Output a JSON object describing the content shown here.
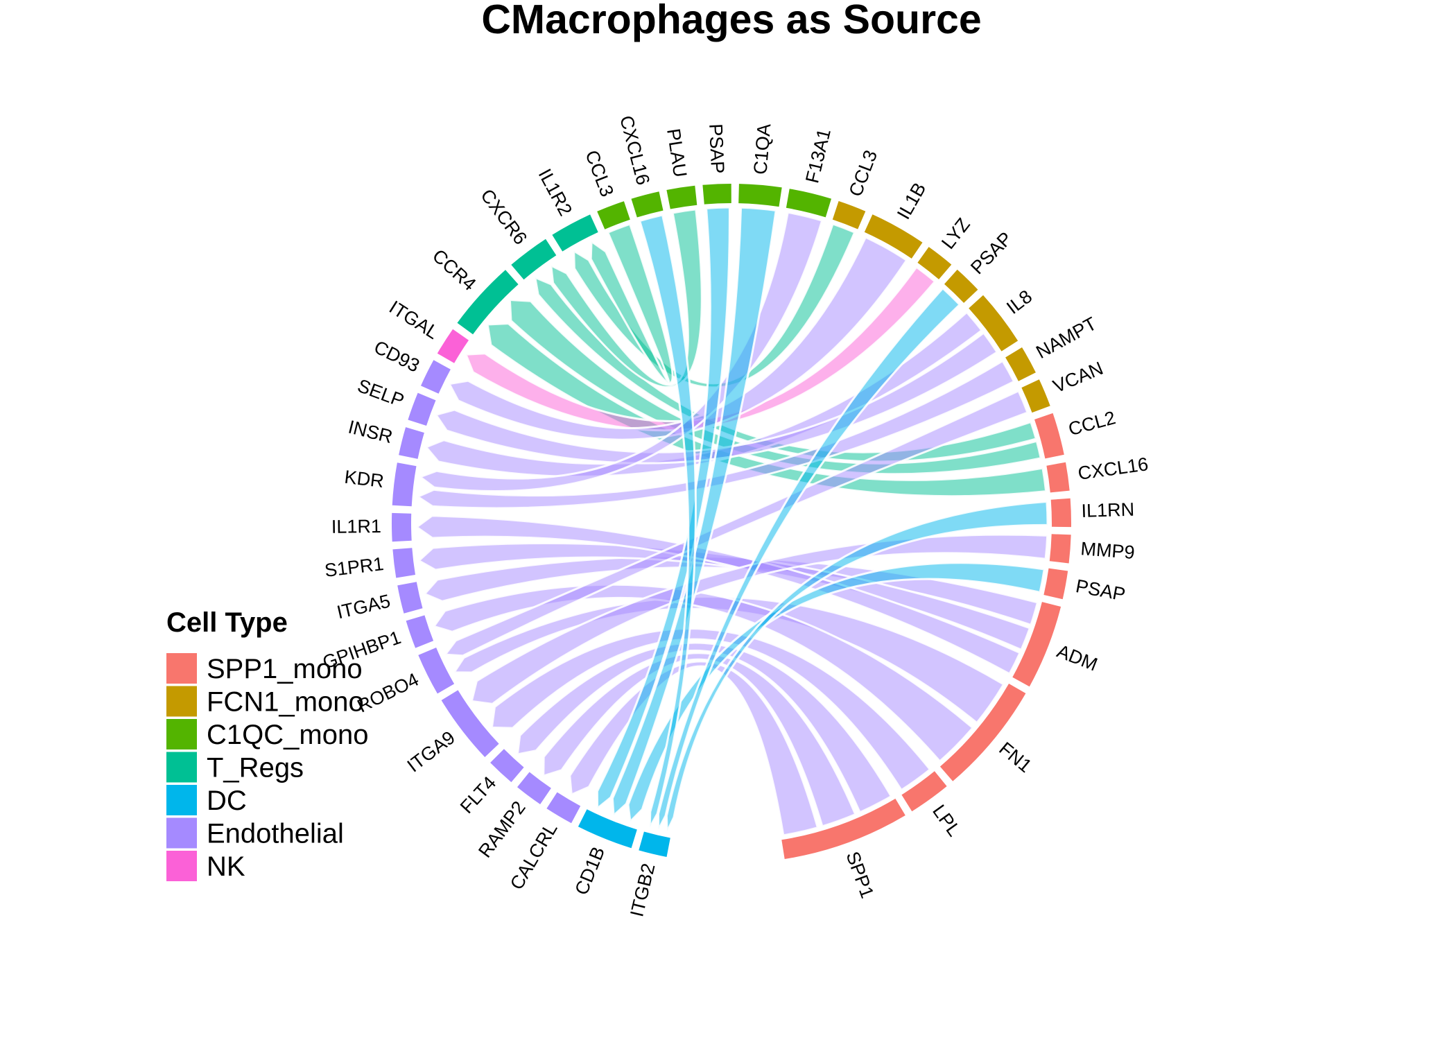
{
  "chart_data": {
    "type": "chord",
    "title": "CMacrophages as Source",
    "legend": {
      "title": "Cell Type",
      "placement": "left",
      "items": [
        {
          "name": "SPP1_mono",
          "color": "#F8766D"
        },
        {
          "name": "FCN1_mono",
          "color": "#C49A00"
        },
        {
          "name": "C1QC_mono",
          "color": "#53B400"
        },
        {
          "name": "T_Regs",
          "color": "#00C094"
        },
        {
          "name": "DC",
          "color": "#00B6EB"
        },
        {
          "name": "Endothelial",
          "color": "#A58AFF"
        },
        {
          "name": "NK",
          "color": "#FB61D7"
        }
      ]
    },
    "sectors": [
      {
        "label": "ITGB2",
        "cell_type": "DC",
        "size": 2
      },
      {
        "label": "CD1B",
        "cell_type": "DC",
        "size": 4
      },
      {
        "label": "CALCRL",
        "cell_type": "Endothelial",
        "size": 2
      },
      {
        "label": "RAMP2",
        "cell_type": "Endothelial",
        "size": 2
      },
      {
        "label": "FLT4",
        "cell_type": "Endothelial",
        "size": 2
      },
      {
        "label": "ITGA9",
        "cell_type": "Endothelial",
        "size": 5
      },
      {
        "label": "ROBO4",
        "cell_type": "Endothelial",
        "size": 3
      },
      {
        "label": "GPIHBP1",
        "cell_type": "Endothelial",
        "size": 2
      },
      {
        "label": "ITGA5",
        "cell_type": "Endothelial",
        "size": 2
      },
      {
        "label": "S1PR1",
        "cell_type": "Endothelial",
        "size": 2
      },
      {
        "label": "IL1R1",
        "cell_type": "Endothelial",
        "size": 2
      },
      {
        "label": "KDR",
        "cell_type": "Endothelial",
        "size": 3
      },
      {
        "label": "INSR",
        "cell_type": "Endothelial",
        "size": 2
      },
      {
        "label": "SELP",
        "cell_type": "Endothelial",
        "size": 2
      },
      {
        "label": "CD93",
        "cell_type": "Endothelial",
        "size": 2
      },
      {
        "label": "ITGAL",
        "cell_type": "NK",
        "size": 2
      },
      {
        "label": "CCR4",
        "cell_type": "T_Regs",
        "size": 5
      },
      {
        "label": "CXCR6",
        "cell_type": "T_Regs",
        "size": 3
      },
      {
        "label": "IL1R2",
        "cell_type": "T_Regs",
        "size": 3
      },
      {
        "label": "CCL3",
        "cell_type": "C1QC_mono",
        "size": 2
      },
      {
        "label": "CXCL16",
        "cell_type": "C1QC_mono",
        "size": 2
      },
      {
        "label": "PLAU",
        "cell_type": "C1QC_mono",
        "size": 2
      },
      {
        "label": "PSAP",
        "cell_type": "C1QC_mono",
        "size": 2
      },
      {
        "label": "C1QA",
        "cell_type": "C1QC_mono",
        "size": 3
      },
      {
        "label": "F13A1",
        "cell_type": "C1QC_mono",
        "size": 3
      },
      {
        "label": "CCL3",
        "cell_type": "FCN1_mono",
        "size": 2
      },
      {
        "label": "IL1B",
        "cell_type": "FCN1_mono",
        "size": 4
      },
      {
        "label": "LYZ",
        "cell_type": "FCN1_mono",
        "size": 2
      },
      {
        "label": "PSAP",
        "cell_type": "FCN1_mono",
        "size": 2
      },
      {
        "label": "IL8",
        "cell_type": "FCN1_mono",
        "size": 4
      },
      {
        "label": "NAMPT",
        "cell_type": "FCN1_mono",
        "size": 2
      },
      {
        "label": "VCAN",
        "cell_type": "FCN1_mono",
        "size": 2
      },
      {
        "label": "CCL2",
        "cell_type": "SPP1_mono",
        "size": 3
      },
      {
        "label": "CXCL16",
        "cell_type": "SPP1_mono",
        "size": 2
      },
      {
        "label": "IL1RN",
        "cell_type": "SPP1_mono",
        "size": 2
      },
      {
        "label": "MMP9",
        "cell_type": "SPP1_mono",
        "size": 2
      },
      {
        "label": "PSAP",
        "cell_type": "SPP1_mono",
        "size": 2
      },
      {
        "label": "ADM",
        "cell_type": "SPP1_mono",
        "size": 6
      },
      {
        "label": "FN1",
        "cell_type": "SPP1_mono",
        "size": 8
      },
      {
        "label": "LPL",
        "cell_type": "SPP1_mono",
        "size": 3
      },
      {
        "label": "SPP1",
        "cell_type": "SPP1_mono",
        "size": 9
      }
    ],
    "links": [
      {
        "source": 40,
        "target": 4
      },
      {
        "source": 40,
        "target": 3
      },
      {
        "source": 40,
        "target": 2
      },
      {
        "source": 39,
        "target": 5
      },
      {
        "source": 38,
        "target": 6
      },
      {
        "source": 38,
        "target": 7
      },
      {
        "source": 37,
        "target": 8
      },
      {
        "source": 37,
        "target": 9
      },
      {
        "source": 37,
        "target": 10
      },
      {
        "source": 36,
        "target": 1
      },
      {
        "source": 35,
        "target": 5
      },
      {
        "source": 34,
        "target": 0
      },
      {
        "source": 33,
        "target": 16
      },
      {
        "source": 32,
        "target": 17
      },
      {
        "source": 32,
        "target": 16
      },
      {
        "source": 31,
        "target": 6
      },
      {
        "source": 30,
        "target": 11
      },
      {
        "source": 29,
        "target": 12
      },
      {
        "source": 29,
        "target": 13
      },
      {
        "source": 28,
        "target": 0
      },
      {
        "source": 27,
        "target": 15
      },
      {
        "source": 26,
        "target": 14
      },
      {
        "source": 25,
        "target": 18
      },
      {
        "source": 24,
        "target": 11
      },
      {
        "source": 23,
        "target": 1
      },
      {
        "source": 22,
        "target": 1
      },
      {
        "source": 21,
        "target": 17
      },
      {
        "source": 20,
        "target": 0
      },
      {
        "source": 19,
        "target": 18
      }
    ]
  }
}
